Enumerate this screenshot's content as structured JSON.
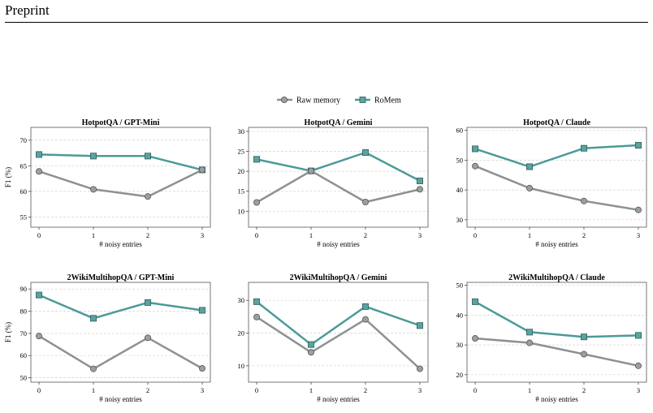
{
  "page": {
    "header": "Preprint"
  },
  "colors": {
    "raw": "#8c9291",
    "romem": "#4b9a98",
    "raw_marker": "#9aa0a0",
    "romem_marker": "#5aa3a0"
  },
  "legend": [
    "Raw memory",
    "RoMem"
  ],
  "chart_data": [
    {
      "type": "line",
      "title": "HotpotQA / GPT-Mini",
      "xlabel": "# noisy entries",
      "ylabel": "F1 (%)",
      "x": [
        0,
        1,
        2,
        3
      ],
      "ylim": [
        53,
        72.5
      ],
      "yticks": [
        55,
        60,
        65,
        70
      ],
      "grid": true,
      "series": [
        {
          "name": "Raw memory",
          "values": [
            63.9,
            60.4,
            59.0,
            64.2
          ]
        },
        {
          "name": "RoMem",
          "values": [
            67.2,
            66.9,
            66.9,
            64.2
          ]
        }
      ]
    },
    {
      "type": "line",
      "title": "HotpotQA / Gemini",
      "xlabel": "# noisy entries",
      "ylabel": "",
      "x": [
        0,
        1,
        2,
        3
      ],
      "ylim": [
        6,
        31
      ],
      "yticks": [
        10,
        15,
        20,
        25,
        30
      ],
      "grid": true,
      "series": [
        {
          "name": "Raw memory",
          "values": [
            12.2,
            20.1,
            12.3,
            15.5
          ]
        },
        {
          "name": "RoMem",
          "values": [
            23.0,
            20.1,
            24.7,
            17.6
          ]
        }
      ]
    },
    {
      "type": "line",
      "title": "HotpotQA / Claude",
      "xlabel": "# noisy entries",
      "ylabel": "",
      "x": [
        0,
        1,
        2,
        3
      ],
      "ylim": [
        27.5,
        61
      ],
      "yticks": [
        30,
        40,
        50,
        60
      ],
      "grid": true,
      "series": [
        {
          "name": "Raw memory",
          "values": [
            48.0,
            40.6,
            36.3,
            33.3
          ]
        },
        {
          "name": "RoMem",
          "values": [
            53.8,
            47.8,
            54.0,
            55.0
          ]
        }
      ]
    },
    {
      "type": "line",
      "title": "2WikiMultihopQA / GPT-Mini",
      "xlabel": "# noisy entries",
      "ylabel": "F1 (%)",
      "x": [
        0,
        1,
        2,
        3
      ],
      "ylim": [
        48,
        93
      ],
      "yticks": [
        50,
        60,
        70,
        80,
        90
      ],
      "grid": true,
      "series": [
        {
          "name": "Raw memory",
          "values": [
            68.8,
            54.0,
            68.0,
            54.2
          ]
        },
        {
          "name": "RoMem",
          "values": [
            87.3,
            76.8,
            83.9,
            80.4
          ]
        }
      ]
    },
    {
      "type": "line",
      "title": "2WikiMultihopQA / Gemini",
      "xlabel": "# noisy entries",
      "ylabel": "",
      "x": [
        0,
        1,
        2,
        3
      ],
      "ylim": [
        5,
        35.5
      ],
      "yticks": [
        10,
        20,
        30
      ],
      "grid": true,
      "series": [
        {
          "name": "Raw memory",
          "values": [
            24.9,
            14.1,
            24.2,
            9.1
          ]
        },
        {
          "name": "RoMem",
          "values": [
            29.6,
            16.5,
            28.1,
            22.3
          ]
        }
      ]
    },
    {
      "type": "line",
      "title": "2WikiMultihopQA / Claude",
      "xlabel": "# noisy entries",
      "ylabel": "",
      "x": [
        0,
        1,
        2,
        3
      ],
      "ylim": [
        17.5,
        51
      ],
      "yticks": [
        20,
        30,
        40,
        50
      ],
      "grid": true,
      "series": [
        {
          "name": "Raw memory",
          "values": [
            32.2,
            30.7,
            26.9,
            23.0
          ]
        },
        {
          "name": "RoMem",
          "values": [
            44.5,
            34.3,
            32.7,
            33.2
          ]
        }
      ]
    }
  ]
}
